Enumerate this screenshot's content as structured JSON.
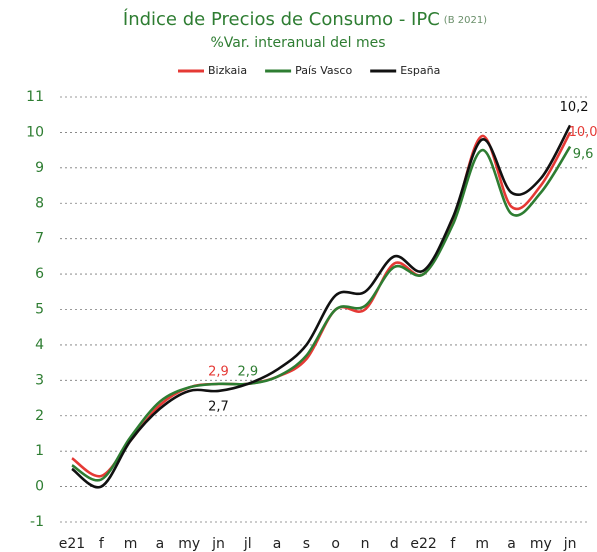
{
  "chart_data": {
    "type": "line",
    "title": "Índice de Precios de Consumo - IPC",
    "title_note": "(B 2021)",
    "subtitle": "%Var. interanual del mes",
    "categories": [
      "e21",
      "f",
      "m",
      "a",
      "my",
      "jn",
      "jl",
      "a",
      "s",
      "o",
      "n",
      "d",
      "e22",
      "f",
      "m",
      "a",
      "my",
      "jn"
    ],
    "series": [
      {
        "name": "Bizkaia",
        "color": "#e53935",
        "values": [
          0.8,
          0.3,
          1.3,
          2.3,
          2.8,
          2.9,
          2.9,
          3.1,
          3.6,
          5.0,
          5.0,
          6.3,
          6.0,
          7.5,
          9.9,
          7.9,
          8.5,
          10.0
        ],
        "value_labels": [
          null,
          null,
          null,
          null,
          null,
          "2,9",
          null,
          null,
          null,
          null,
          null,
          null,
          null,
          null,
          null,
          null,
          null,
          "10,0"
        ]
      },
      {
        "name": "País Vasco",
        "color": "#2e7d32",
        "values": [
          0.6,
          0.2,
          1.4,
          2.4,
          2.8,
          2.9,
          2.9,
          3.1,
          3.7,
          5.0,
          5.1,
          6.2,
          6.0,
          7.4,
          9.5,
          7.7,
          8.3,
          9.6
        ],
        "value_labels": [
          null,
          null,
          null,
          null,
          null,
          null,
          "2,9",
          null,
          null,
          null,
          null,
          null,
          null,
          null,
          null,
          null,
          null,
          "9,6"
        ]
      },
      {
        "name": "España",
        "color": "#111111",
        "values": [
          0.5,
          0.0,
          1.3,
          2.2,
          2.7,
          2.7,
          2.9,
          3.3,
          4.0,
          5.4,
          5.5,
          6.5,
          6.1,
          7.6,
          9.8,
          8.3,
          8.7,
          10.2
        ],
        "value_labels": [
          null,
          null,
          null,
          null,
          null,
          "2,7",
          null,
          null,
          null,
          null,
          null,
          null,
          null,
          null,
          null,
          null,
          null,
          "10,2"
        ]
      }
    ],
    "ylim": [
      -1,
      11
    ],
    "yticks": [
      -1,
      0,
      1,
      2,
      3,
      4,
      5,
      6,
      7,
      8,
      9,
      10,
      11
    ],
    "grid": true,
    "legend": "top"
  }
}
